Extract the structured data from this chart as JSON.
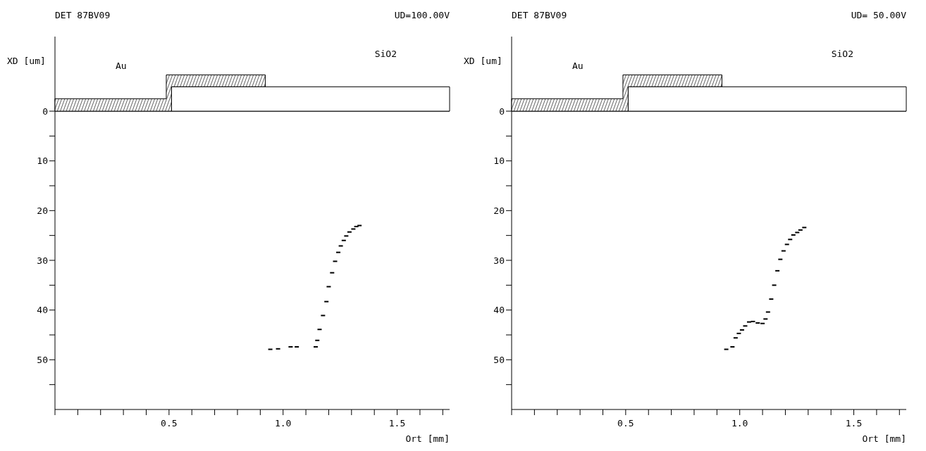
{
  "chart_data": [
    {
      "type": "scatter",
      "title": "DET 87BV09",
      "subtitle": "UD=100.00V",
      "xlabel": "Ort [mm]",
      "ylabel": "XD [um]",
      "annotations": [
        "Au",
        "SiO2"
      ],
      "xlim": [
        0,
        1.73
      ],
      "xticks": [
        {
          "value": 0,
          "label": null
        },
        {
          "value": 0.1,
          "label": null
        },
        {
          "value": 0.2,
          "label": null
        },
        {
          "value": 0.3,
          "label": null
        },
        {
          "value": 0.4,
          "label": null
        },
        {
          "value": 0.5,
          "label": "0.5"
        },
        {
          "value": 0.6,
          "label": null
        },
        {
          "value": 0.7,
          "label": null
        },
        {
          "value": 0.8,
          "label": null
        },
        {
          "value": 0.9,
          "label": null
        },
        {
          "value": 1,
          "label": "1.0"
        },
        {
          "value": 1.1,
          "label": null
        },
        {
          "value": 1.2,
          "label": null
        },
        {
          "value": 1.3,
          "label": null
        },
        {
          "value": 1.4,
          "label": null
        },
        {
          "value": 1.5,
          "label": "1.5"
        },
        {
          "value": 1.6,
          "label": null
        },
        {
          "value": 1.7,
          "label": null
        }
      ],
      "ylim": [
        60,
        -15
      ],
      "yticks": [
        0,
        {
          "value": 5,
          "label": null
        },
        10,
        {
          "value": 15,
          "label": null
        },
        20,
        {
          "value": 25,
          "label": null
        },
        30,
        {
          "value": 35,
          "label": null
        },
        40,
        {
          "value": 45,
          "label": null
        },
        50,
        {
          "value": 55,
          "label": null
        }
      ],
      "ref_lines": [
        {
          "axis": "y",
          "value": 0,
          "color": "#000000"
        }
      ],
      "series": [
        {
          "color": "#000000",
          "x": [
            0.944,
            0.978,
            1.033,
            1.06,
            1.143,
            1.15,
            1.16,
            1.175,
            1.19,
            1.2,
            1.215,
            1.228,
            1.242,
            1.253,
            1.266,
            1.277,
            1.291,
            1.308,
            1.321,
            1.335
          ],
          "values": [
            47.9,
            47.8,
            47.4,
            47.4,
            47.4,
            46.1,
            43.9,
            41.1,
            38.3,
            35.3,
            32.5,
            30.2,
            28.4,
            27.1,
            26.0,
            25.1,
            24.3,
            23.7,
            23.2,
            23.0
          ]
        }
      ]
    },
    {
      "type": "scatter",
      "title": "DET 87BV09",
      "subtitle": "UD= 50.00V",
      "xlabel": "Ort [mm]",
      "ylabel": "XD [um]",
      "annotations": [
        "Au",
        "SiO2"
      ],
      "xlim": [
        0,
        1.73
      ],
      "xticks": [
        {
          "value": 0,
          "label": null
        },
        {
          "value": 0.1,
          "label": null
        },
        {
          "value": 0.2,
          "label": null
        },
        {
          "value": 0.3,
          "label": null
        },
        {
          "value": 0.4,
          "label": null
        },
        {
          "value": 0.5,
          "label": "0.5"
        },
        {
          "value": 0.6,
          "label": null
        },
        {
          "value": 0.7,
          "label": null
        },
        {
          "value": 0.8,
          "label": null
        },
        {
          "value": 0.9,
          "label": null
        },
        {
          "value": 1,
          "label": "1.0"
        },
        {
          "value": 1.1,
          "label": null
        },
        {
          "value": 1.2,
          "label": null
        },
        {
          "value": 1.3,
          "label": null
        },
        {
          "value": 1.4,
          "label": null
        },
        {
          "value": 1.5,
          "label": "1.5"
        },
        {
          "value": 1.6,
          "label": null
        },
        {
          "value": 1.7,
          "label": null
        }
      ],
      "ylim": [
        60,
        -15
      ],
      "yticks": [
        0,
        {
          "value": 5,
          "label": null
        },
        10,
        {
          "value": 15,
          "label": null
        },
        20,
        {
          "value": 25,
          "label": null
        },
        30,
        {
          "value": 35,
          "label": null
        },
        40,
        {
          "value": 45,
          "label": null
        },
        50,
        {
          "value": 55,
          "label": null
        }
      ],
      "ref_lines": [
        {
          "axis": "y",
          "value": 0,
          "color": "#000000"
        }
      ],
      "series": [
        {
          "color": "#000000",
          "x": [
            0.941,
            0.968,
            0.982,
            0.996,
            1.01,
            1.024,
            1.041,
            1.058,
            1.079,
            1.1,
            1.113,
            1.124,
            1.138,
            1.151,
            1.165,
            1.178,
            1.192,
            1.207,
            1.221,
            1.235,
            1.252,
            1.266,
            1.283
          ],
          "values": [
            47.9,
            47.4,
            45.6,
            44.7,
            44.0,
            43.2,
            42.4,
            42.3,
            42.6,
            42.7,
            41.8,
            40.4,
            37.8,
            35.0,
            32.1,
            29.8,
            28.1,
            26.8,
            25.8,
            24.9,
            24.4,
            23.9,
            23.4
          ]
        }
      ]
    }
  ]
}
